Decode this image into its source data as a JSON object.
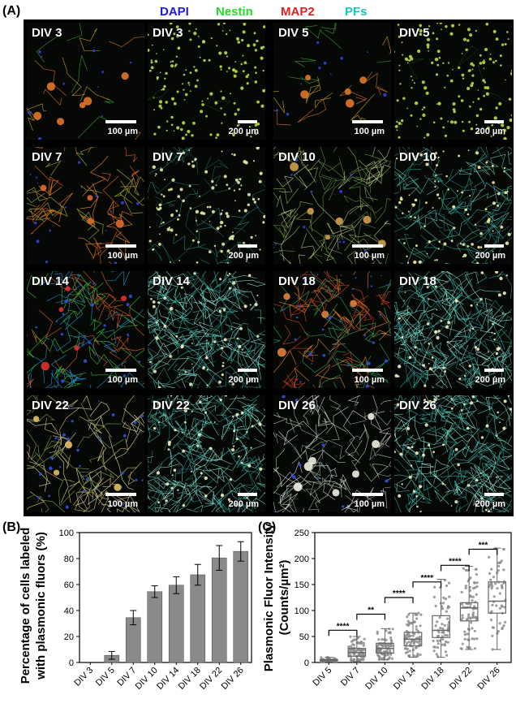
{
  "figure": {
    "panel_labels": {
      "a": "(A)",
      "b": "(B)",
      "c": "(C)"
    },
    "legend": [
      {
        "text": "DAPI",
        "color": "#1a1ae6"
      },
      {
        "text": "Nestin",
        "color": "#22dd22"
      },
      {
        "text": "MAP2",
        "color": "#e62020"
      },
      {
        "text": "PFs",
        "color": "#18c8c0"
      }
    ],
    "micrographs": [
      {
        "label_left": "DIV 3",
        "label_right": "DIV 3",
        "scale_left": "100 µm",
        "scale_right": "200 µm",
        "style_left": "sparse-orange",
        "style_right": "dots"
      },
      {
        "label_left": "DIV 5",
        "label_right": "DIV 5",
        "scale_left": "100 µm",
        "scale_right": "200 µm",
        "style_left": "sparse-orange",
        "style_right": "dots"
      },
      {
        "label_left": "DIV 7",
        "label_right": "DIV 7",
        "scale_left": "100 µm",
        "scale_right": "200 µm",
        "style_left": "orange-net",
        "style_right": "cyan-dots"
      },
      {
        "label_left": "DIV 10",
        "label_right": "DIV 10",
        "scale_left": "100 µm",
        "scale_right": "200 µm",
        "style_left": "green-net",
        "style_right": "cyan-net"
      },
      {
        "label_left": "DIV 14",
        "label_right": "DIV 14",
        "scale_left": "100 µm",
        "scale_right": "200 µm",
        "style_left": "mixed-net",
        "style_right": "cyan-dense"
      },
      {
        "label_left": "DIV 18",
        "label_right": "DIV 18",
        "scale_left": "100 µm",
        "scale_right": "200 µm",
        "style_left": "red-net",
        "style_right": "cyan-dense"
      },
      {
        "label_left": "DIV 22",
        "label_right": "DIV 22",
        "scale_left": "100 µm",
        "scale_right": "200 µm",
        "style_left": "yellow-net",
        "style_right": "cyan-dense"
      },
      {
        "label_left": "DIV 26",
        "label_right": "DIV 26",
        "scale_left": "100 µm",
        "scale_right": "200 µm",
        "style_left": "white-net",
        "style_right": "cyan-dense"
      }
    ]
  },
  "chart_data": [
    {
      "type": "bar",
      "categories": [
        "DIV 3",
        "DIV 5",
        "DIV 7",
        "DIV 10",
        "DIV 14",
        "DIV 18",
        "DIV 22",
        "DIV 26"
      ],
      "values": [
        0,
        5.5,
        34.5,
        54.5,
        59.5,
        67.5,
        80.5,
        85.5
      ],
      "errors": [
        0,
        3,
        5.5,
        4.5,
        6.5,
        8,
        9.5,
        7.5
      ],
      "ylabel": "Percentage of cells labeled with plasmonic fluors (%)",
      "ylabel_lines": [
        "Percentage of cells labeled",
        "with plasmonic fluors (%)"
      ],
      "ylim": [
        0,
        100
      ],
      "yticks": [
        0,
        20,
        40,
        60,
        80,
        100
      ],
      "bar_color": "#8a8a8a"
    },
    {
      "type": "box",
      "categories": [
        "DIV 5",
        "DIV 7",
        "DIV 10",
        "DIV 14",
        "DIV 18",
        "DIV 22",
        "DIV 26"
      ],
      "boxes": [
        {
          "q1": 3,
          "median": 5,
          "q3": 6,
          "low": 1,
          "high": 10,
          "n": 30
        },
        {
          "q1": 12,
          "median": 19,
          "q3": 27,
          "low": 2,
          "high": 50,
          "n": 80
        },
        {
          "q1": 18,
          "median": 27,
          "q3": 37,
          "low": 5,
          "high": 65,
          "n": 90
        },
        {
          "q1": 32,
          "median": 45,
          "q3": 58,
          "low": 10,
          "high": 95,
          "n": 80
        },
        {
          "q1": 48,
          "median": 62,
          "q3": 90,
          "low": 10,
          "high": 160,
          "n": 60
        },
        {
          "q1": 80,
          "median": 105,
          "q3": 115,
          "low": 25,
          "high": 185,
          "n": 80
        },
        {
          "q1": 95,
          "median": 118,
          "q3": 155,
          "low": 25,
          "high": 220,
          "n": 55
        }
      ],
      "significance": [
        {
          "from": 0,
          "to": 1,
          "y": 62,
          "label": "****"
        },
        {
          "from": 1,
          "to": 2,
          "y": 93,
          "label": "**"
        },
        {
          "from": 2,
          "to": 3,
          "y": 125,
          "label": "****"
        },
        {
          "from": 3,
          "to": 4,
          "y": 155,
          "label": "****"
        },
        {
          "from": 4,
          "to": 5,
          "y": 187,
          "label": "****"
        },
        {
          "from": 5,
          "to": 6,
          "y": 218,
          "label": "***"
        }
      ],
      "ylabel_lines": [
        "Plasmonic Fluor Intensity",
        "(Counts/µm²)"
      ],
      "ylim": [
        0,
        250
      ],
      "yticks": [
        0,
        50,
        100,
        150,
        200,
        250
      ],
      "box_color": "#666666",
      "point_color": "#8c8c8c"
    }
  ]
}
